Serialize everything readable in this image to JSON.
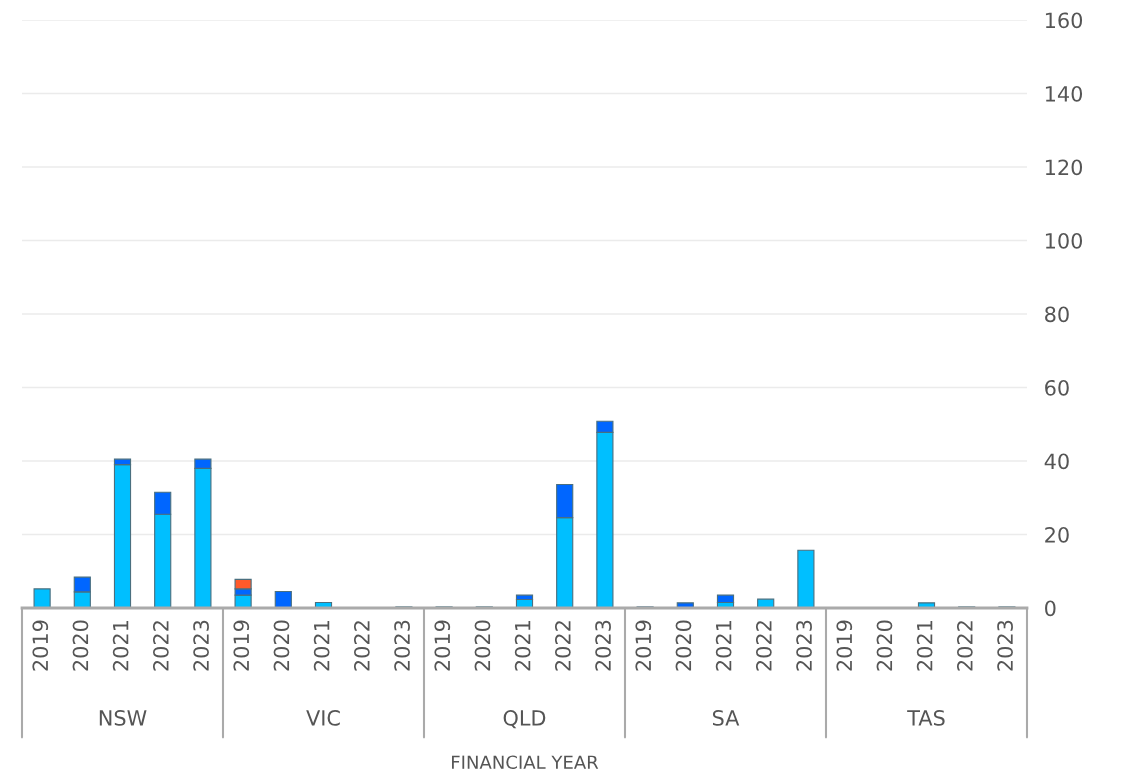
{
  "chart_data": {
    "type": "bar",
    "stacked": true,
    "xlabel": "FINANCIAL YEAR",
    "categories": [
      "2019",
      "2020",
      "2021",
      "2022",
      "2023",
      "2019",
      "2020",
      "2021",
      "2022",
      "2023",
      "2019",
      "2020",
      "2021",
      "2022",
      "2023",
      "2019",
      "2020",
      "2021",
      "2022",
      "2023",
      "2019",
      "2020",
      "2021",
      "2022",
      "2023"
    ],
    "series": [
      {
        "color": "#00bfff",
        "values": [
          5.2,
          4.4,
          39,
          25.5,
          38,
          3.5,
          null,
          1.5,
          null,
          0.3,
          0.3,
          0.3,
          2.3,
          24.6,
          47.8,
          null,
          null,
          1.5,
          2.4,
          15.7,
          null,
          null,
          1.4,
          0.3,
          0.3
        ]
      },
      {
        "color": "#0066ff",
        "values": [
          null,
          4,
          1.5,
          6,
          2.5,
          1.7,
          4.5,
          null,
          null,
          null,
          null,
          null,
          1.2,
          9,
          3,
          0.3,
          1.4,
          2,
          null,
          null,
          null,
          null,
          null,
          null,
          null
        ]
      },
      {
        "color": "#ff5a2a",
        "values": [
          null,
          null,
          null,
          null,
          null,
          2.6,
          null,
          null,
          null,
          null,
          null,
          null,
          null,
          null,
          null,
          null,
          null,
          null,
          null,
          null,
          null,
          null,
          null,
          null,
          null
        ]
      }
    ],
    "annotations": [
      "NSW",
      "VIC",
      "QLD",
      "SA",
      "TAS"
    ],
    "ylim": [
      0,
      160
    ],
    "yticks": [
      0,
      20,
      40,
      60,
      80,
      100,
      120,
      140,
      160
    ],
    "grid": "y",
    "legend": false
  }
}
